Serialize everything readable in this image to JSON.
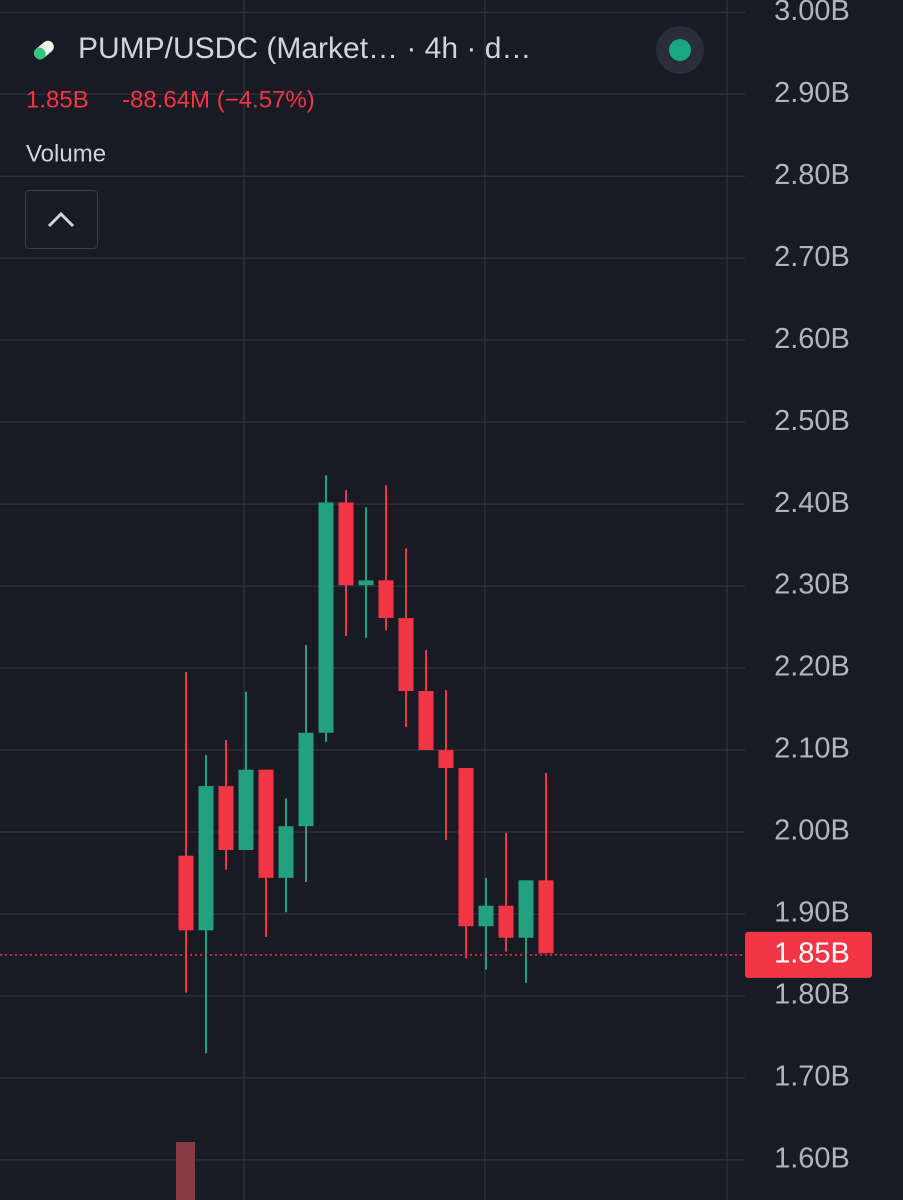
{
  "chart_data": {
    "type": "candlestick",
    "title": "PUMP/USDC (Market… · 4h · d…",
    "price_label": "1.85B",
    "change_label": "-88.64M (−4.57%)",
    "indicator_label": "Volume",
    "last_price": 1.85,
    "last_price_label": "1.85B",
    "up_color": "#22a07f",
    "down_color": "#f23645",
    "open": [
      1.971,
      1.88,
      2.056,
      1.978,
      2.076,
      1.944,
      2.007,
      2.121,
      2.402,
      2.301,
      2.307,
      2.261,
      2.172,
      2.1,
      2.078,
      1.885,
      1.91,
      1.871,
      1.941
    ],
    "high": [
      2.195,
      2.094,
      2.112,
      2.171,
      2.076,
      2.041,
      2.228,
      2.435,
      2.417,
      2.396,
      2.423,
      2.346,
      2.222,
      2.173,
      2.078,
      1.944,
      1.999,
      1.941,
      2.072
    ],
    "low": [
      1.804,
      1.73,
      1.954,
      1.978,
      1.872,
      1.902,
      1.939,
      2.11,
      2.239,
      2.237,
      2.246,
      2.128,
      2.1,
      1.99,
      1.846,
      1.832,
      1.854,
      1.816,
      1.852
    ],
    "close": [
      1.88,
      2.056,
      1.978,
      2.076,
      1.944,
      2.007,
      2.121,
      2.402,
      2.301,
      2.307,
      2.261,
      2.172,
      2.1,
      2.078,
      1.885,
      1.91,
      1.871,
      1.941,
      1.852
    ],
    "ylim": [
      1.551,
      3.015
    ],
    "yticks": [
      {
        "value": 1.6,
        "label": "1.60B"
      },
      {
        "value": 1.7,
        "label": "1.70B"
      },
      {
        "value": 1.8,
        "label": "1.80B"
      },
      {
        "value": 1.9,
        "label": "1.90B"
      },
      {
        "value": 2.0,
        "label": "2.00B"
      },
      {
        "value": 2.1,
        "label": "2.10B"
      },
      {
        "value": 2.2,
        "label": "2.20B"
      },
      {
        "value": 2.3,
        "label": "2.30B"
      },
      {
        "value": 2.4,
        "label": "2.40B"
      },
      {
        "value": 2.5,
        "label": "2.50B"
      },
      {
        "value": 2.6,
        "label": "2.60B"
      },
      {
        "value": 2.7,
        "label": "2.70B"
      },
      {
        "value": 2.8,
        "label": "2.80B"
      },
      {
        "value": 2.9,
        "label": "2.90B"
      },
      {
        "value": 3.0,
        "label": "3.00B"
      }
    ],
    "grid": true
  }
}
